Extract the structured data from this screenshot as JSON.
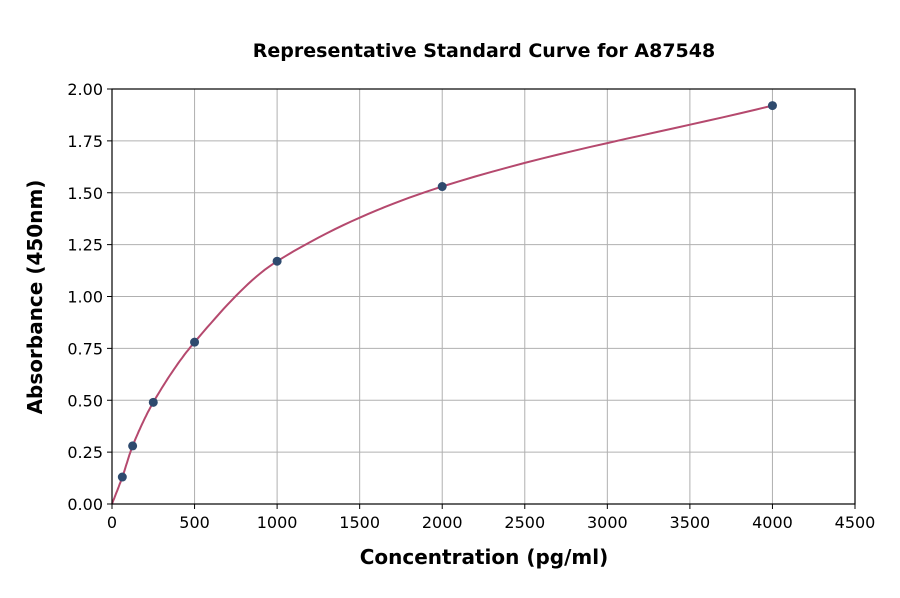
{
  "chart_data": {
    "type": "scatter",
    "title": "Representative Standard Curve for A87548",
    "xlabel": "Concentration (pg/ml)",
    "ylabel": "Absorbance (450nm)",
    "xlim": [
      0,
      4500
    ],
    "ylim": [
      0,
      2.0
    ],
    "xticks": [
      0,
      500,
      1000,
      1500,
      2000,
      2500,
      3000,
      3500,
      4000,
      4500
    ],
    "yticks": [
      "0.00",
      "0.25",
      "0.50",
      "0.75",
      "1.00",
      "1.25",
      "1.50",
      "1.75",
      "2.00"
    ],
    "grid": true,
    "points": [
      {
        "x": 0,
        "y": 0.0
      },
      {
        "x": 62.5,
        "y": 0.13
      },
      {
        "x": 125,
        "y": 0.28
      },
      {
        "x": 250,
        "y": 0.49
      },
      {
        "x": 500,
        "y": 0.78
      },
      {
        "x": 1000,
        "y": 1.17
      },
      {
        "x": 2000,
        "y": 1.53
      },
      {
        "x": 4000,
        "y": 1.92
      }
    ],
    "point_color": "#2e4a6e",
    "curve_color": "#b5496e"
  }
}
